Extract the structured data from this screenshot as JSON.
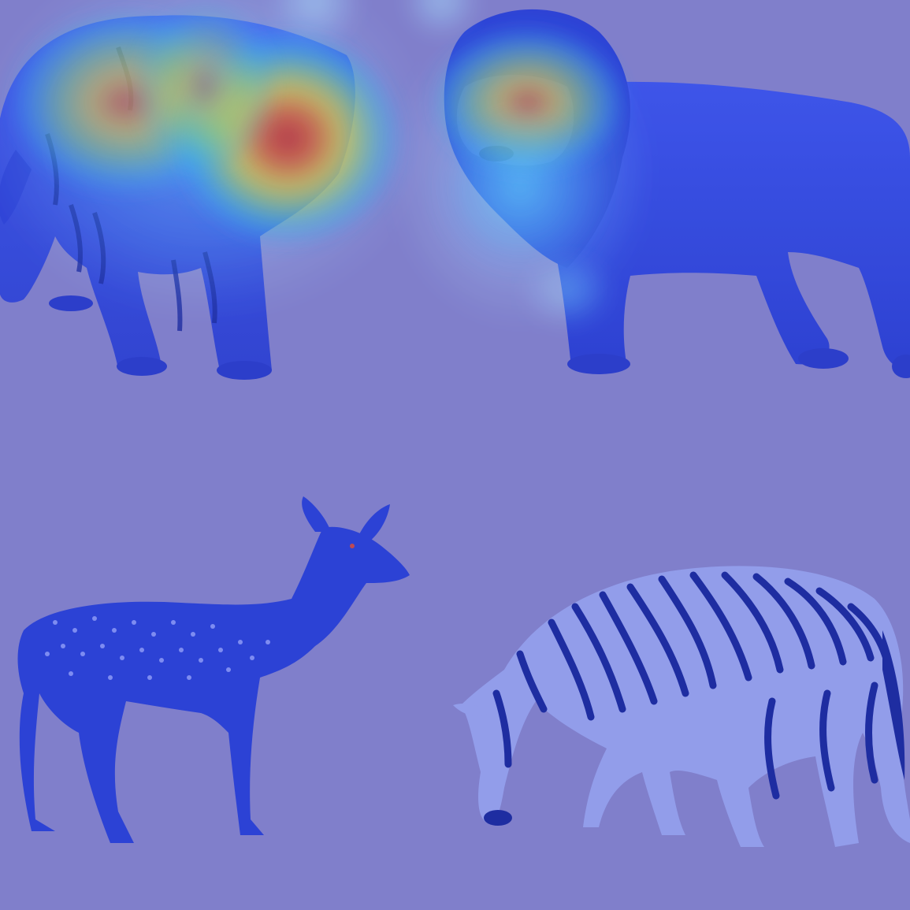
{
  "image": {
    "kind": "attention heatmap overlay on animal illustrations",
    "subjects": [
      "tiger",
      "lion",
      "deer",
      "zebra"
    ],
    "overlay_colormap": "jet",
    "background_color": "#8583c9",
    "hot_regions": [
      "tiger-face",
      "tiger-shoulder",
      "lion-face"
    ]
  },
  "colors": {
    "body_dark": "#2a3fd8",
    "body_mid": "#3f56e6",
    "body_light": "#6b7ef0",
    "stripe": "#1b2a9c",
    "deer_spot": "#a9b4ff",
    "zebra_light": "#a8b3f2"
  }
}
